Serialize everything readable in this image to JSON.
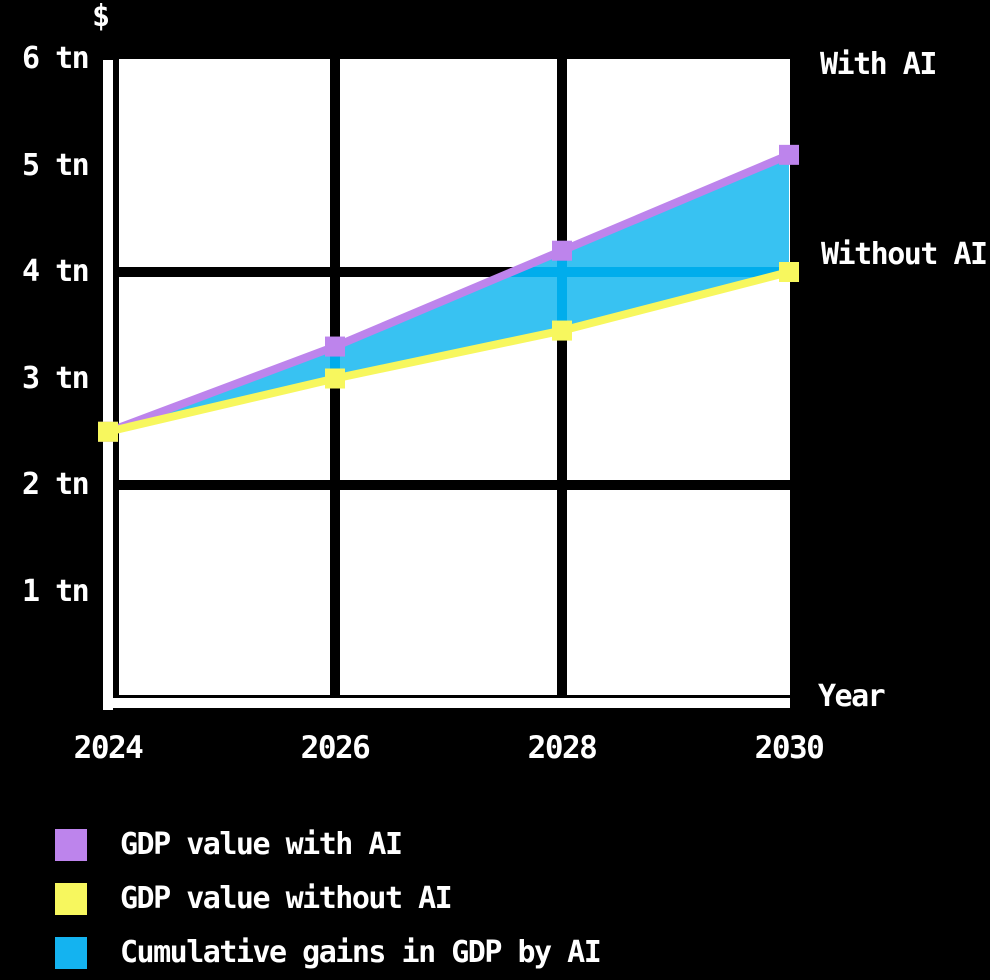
{
  "chart_data": {
    "type": "line-area",
    "title": "",
    "x": [
      2024,
      2026,
      2028,
      2030
    ],
    "x_tick_labels": [
      "2024",
      "2026",
      "2028",
      "2030"
    ],
    "xlabel": "Year",
    "ylabel": "$",
    "ylim": [
      0,
      6
    ],
    "y_ticks": [
      {
        "value": 1,
        "label": "1 tn"
      },
      {
        "value": 2,
        "label": "2 tn"
      },
      {
        "value": 3,
        "label": "3 tn"
      },
      {
        "value": 4,
        "label": "4 tn"
      },
      {
        "value": 5,
        "label": "5 tn"
      },
      {
        "value": 6,
        "label": "6 tn"
      }
    ],
    "grid": {
      "vertical_at_x": [
        2026,
        2028
      ],
      "horizontal_at_y": [
        2,
        4
      ]
    },
    "series": [
      {
        "name": "GDP value with AI",
        "annotation": "With AI",
        "marker": "square",
        "color": "#bd84ec",
        "values": [
          2.5,
          3.3,
          4.2,
          5.1
        ]
      },
      {
        "name": "GDP value without AI",
        "annotation": "Without AI",
        "marker": "square",
        "color": "#f7f75e",
        "values": [
          2.5,
          3.0,
          3.45,
          4.0
        ]
      }
    ],
    "area_between_series": {
      "name": "Cumulative gains in GDP by AI",
      "color": "#38c2f2",
      "grid_show_through_color": "#00adec"
    },
    "legend_position": "bottom-left",
    "page_bg": "#000000",
    "plot_bg": "#ffffff",
    "gridline_color": "#000000",
    "axis_color": "#ffffff",
    "text_color": "#ffffff"
  },
  "labels": {
    "y_axis_title": "$",
    "x_axis_title": "Year",
    "with_ai": "With AI",
    "without_ai": "Without AI"
  },
  "legend": {
    "items": [
      {
        "label": "GDP value with AI",
        "color": "#bd84ec"
      },
      {
        "label": "GDP value without AI",
        "color": "#f7f75e"
      },
      {
        "label": "Cumulative gains in GDP by AI",
        "color": "#14b3f0"
      }
    ]
  }
}
